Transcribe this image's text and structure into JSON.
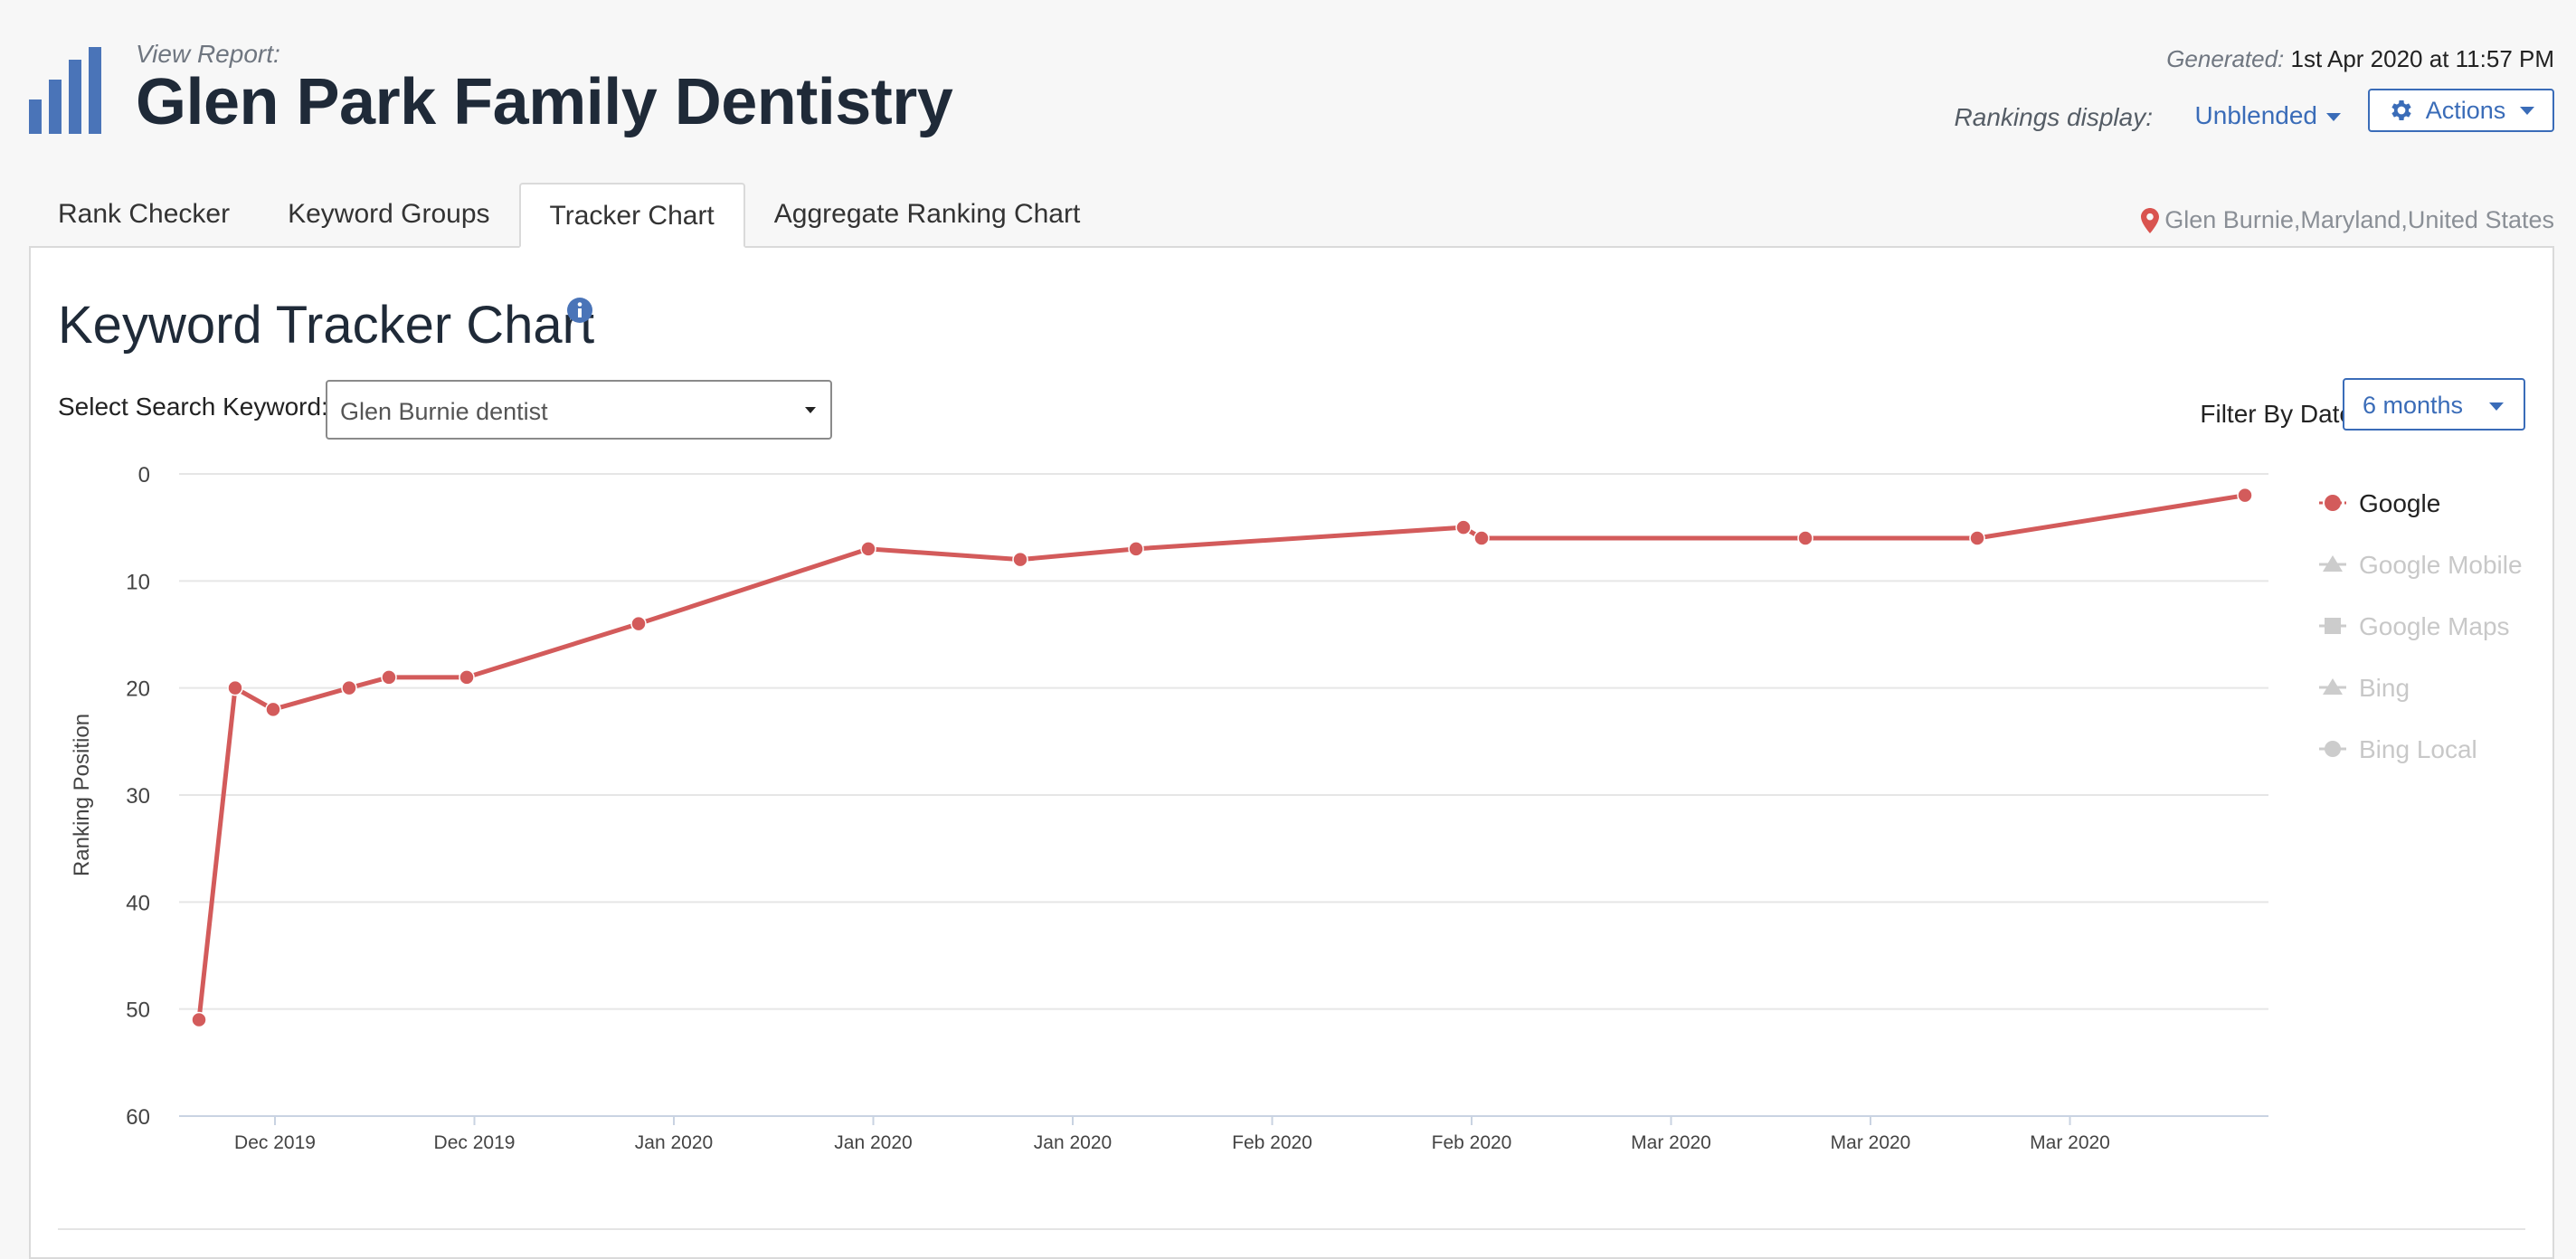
{
  "header": {
    "view_report_label": "View Report:",
    "title": "Glen Park Family Dentistry",
    "generated_label": "Generated:",
    "generated_value": "1st Apr 2020 at 11:57 PM",
    "rankings_display_label": "Rankings display:",
    "rankings_display_value": "Unblended",
    "actions_label": "Actions",
    "logo_icon": "bar-chart-logo",
    "brand_color": "#4a74b8"
  },
  "tabs": [
    {
      "label": "Rank Checker",
      "active": false
    },
    {
      "label": "Keyword Groups",
      "active": false
    },
    {
      "label": "Tracker Chart",
      "active": true
    },
    {
      "label": "Aggregate Ranking Chart",
      "active": false
    }
  ],
  "location": {
    "text": "Glen Burnie,Maryland,United States",
    "icon": "map-pin-icon",
    "icon_color": "#d9534f"
  },
  "panel": {
    "title": "Keyword Tracker Chart",
    "info_icon": "info-icon",
    "select_keyword_label": "Select Search Keyword:",
    "selected_keyword": "Glen Burnie dentist",
    "filter_label": "Filter By Date",
    "filter_value": "6 months"
  },
  "chart_data": {
    "type": "line",
    "title": "",
    "xlabel": "",
    "ylabel": "Ranking Position",
    "ylim": [
      0,
      60
    ],
    "y_inverted": true,
    "y_ticks": [
      0,
      10,
      20,
      30,
      40,
      50,
      60
    ],
    "x_tick_labels": [
      "Dec 2019",
      "Dec 2019",
      "Jan 2020",
      "Jan 2020",
      "Jan 2020",
      "Feb 2020",
      "Feb 2020",
      "Mar 2020",
      "Mar 2020",
      "Mar 2020"
    ],
    "grid": true,
    "legend_position": "right",
    "series": [
      {
        "name": "Google",
        "color": "#d35b5b",
        "active": true,
        "marker": "circle",
        "values": [
          51,
          20,
          22,
          20,
          19,
          19,
          14,
          7,
          8,
          7,
          5,
          6,
          6,
          6,
          2
        ]
      },
      {
        "name": "Google Mobile",
        "active": false,
        "marker": "triangle",
        "color": "#cccccc",
        "values": []
      },
      {
        "name": "Google Maps",
        "active": false,
        "marker": "square",
        "color": "#cccccc",
        "values": []
      },
      {
        "name": "Bing",
        "active": false,
        "marker": "triangle",
        "color": "#cccccc",
        "values": []
      },
      {
        "name": "Bing Local",
        "active": false,
        "marker": "circle",
        "color": "#cccccc",
        "values": []
      }
    ]
  }
}
